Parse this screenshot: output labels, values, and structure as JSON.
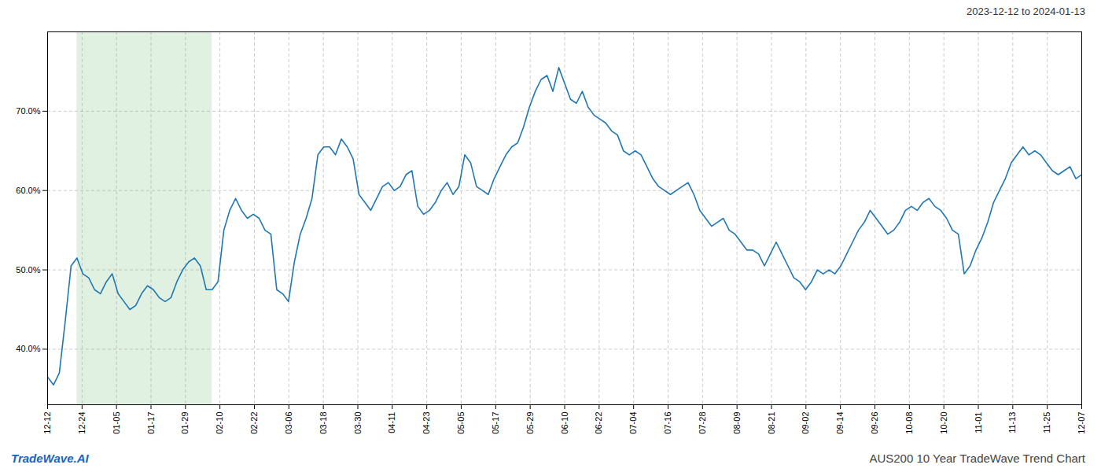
{
  "chart_data": {
    "type": "line",
    "title": "AUS200 10 Year TradeWave Trend Chart",
    "subtitle": "2023-12-12 to 2024-01-13",
    "annotations": [
      {
        "text": "TradeWave.AI",
        "color": "#1565c0"
      }
    ],
    "color": "#1f77b4",
    "highlight_range": [
      5,
      28
    ],
    "highlight_color": "#c8e6c9",
    "grid": true,
    "xlim": [
      0,
      176
    ],
    "xticks": [
      {
        "value": 0,
        "label": "12-12"
      },
      {
        "value": 5.866667,
        "label": "12-24"
      },
      {
        "value": 11.733333,
        "label": "01-05"
      },
      {
        "value": 17.6,
        "label": "01-17"
      },
      {
        "value": 23.466667,
        "label": "01-29"
      },
      {
        "value": 29.333333,
        "label": "02-10"
      },
      {
        "value": 35.2,
        "label": "02-22"
      },
      {
        "value": 41.066667,
        "label": "03-06"
      },
      {
        "value": 46.933333,
        "label": "03-18"
      },
      {
        "value": 52.8,
        "label": "03-30"
      },
      {
        "value": 58.666667,
        "label": "04-11"
      },
      {
        "value": 64.533333,
        "label": "04-23"
      },
      {
        "value": 70.4,
        "label": "05-05"
      },
      {
        "value": 76.266667,
        "label": "05-17"
      },
      {
        "value": 82.133333,
        "label": "05-29"
      },
      {
        "value": 88,
        "label": "06-10"
      },
      {
        "value": 93.866667,
        "label": "06-22"
      },
      {
        "value": 99.733333,
        "label": "07-04"
      },
      {
        "value": 105.6,
        "label": "07-16"
      },
      {
        "value": 111.466667,
        "label": "07-28"
      },
      {
        "value": 117.333333,
        "label": "08-09"
      },
      {
        "value": 123.2,
        "label": "08-21"
      },
      {
        "value": 129.066667,
        "label": "09-02"
      },
      {
        "value": 134.933333,
        "label": "09-14"
      },
      {
        "value": 140.8,
        "label": "09-26"
      },
      {
        "value": 146.666667,
        "label": "10-08"
      },
      {
        "value": 152.533333,
        "label": "10-20"
      },
      {
        "value": 158.4,
        "label": "11-01"
      },
      {
        "value": 164.266667,
        "label": "11-13"
      },
      {
        "value": 170.133333,
        "label": "11-25"
      },
      {
        "value": 176,
        "label": "12-07"
      }
    ],
    "ylim": [
      33,
      80
    ],
    "yticks": [
      {
        "value": 40.0,
        "label": "40.0%"
      },
      {
        "value": 50.0,
        "label": "50.0%"
      },
      {
        "value": 60.0,
        "label": "60.0%"
      },
      {
        "value": 70.0,
        "label": "70.0%"
      }
    ],
    "x": [
      0,
      1,
      2,
      3,
      4,
      5,
      6,
      7,
      8,
      9,
      10,
      11,
      12,
      13,
      14,
      15,
      16,
      17,
      18,
      19,
      20,
      21,
      22,
      23,
      24,
      25,
      26,
      27,
      28,
      29,
      30,
      31,
      32,
      33,
      34,
      35,
      36,
      37,
      38,
      39,
      40,
      41,
      42,
      43,
      44,
      45,
      46,
      47,
      48,
      49,
      50,
      51,
      52,
      53,
      54,
      55,
      56,
      57,
      58,
      59,
      60,
      61,
      62,
      63,
      64,
      65,
      66,
      67,
      68,
      69,
      70,
      71,
      72,
      73,
      74,
      75,
      76,
      77,
      78,
      79,
      80,
      81,
      82,
      83,
      84,
      85,
      86,
      87,
      88,
      89,
      90,
      91,
      92,
      93,
      94,
      95,
      96,
      97,
      98,
      99,
      100,
      101,
      102,
      103,
      104,
      105,
      106,
      107,
      108,
      109,
      110,
      111,
      112,
      113,
      114,
      115,
      116,
      117,
      118,
      119,
      120,
      121,
      122,
      123,
      124,
      125,
      126,
      127,
      128,
      129,
      130,
      131,
      132,
      133,
      134,
      135,
      136,
      137,
      138,
      139,
      140,
      141,
      142,
      143,
      144,
      145,
      146,
      147,
      148,
      149,
      150,
      151,
      152,
      153,
      154,
      155,
      156,
      157,
      158,
      159,
      160,
      161,
      162,
      163,
      164,
      165,
      166,
      167,
      168,
      169,
      170,
      171,
      172,
      173,
      174,
      175,
      176
    ],
    "values": [
      36.5,
      35.5,
      37.0,
      43.5,
      50.5,
      51.5,
      49.5,
      49.0,
      47.5,
      47.0,
      48.5,
      49.5,
      47.0,
      46.0,
      45.0,
      45.5,
      47.0,
      48.0,
      47.5,
      46.5,
      46.0,
      46.5,
      48.5,
      50.0,
      51.0,
      51.5,
      50.5,
      47.5,
      47.5,
      48.5,
      55.0,
      57.5,
      59.0,
      57.5,
      56.5,
      57.0,
      56.5,
      55.0,
      54.5,
      47.5,
      47.0,
      46.0,
      51.0,
      54.5,
      56.5,
      59.0,
      64.5,
      65.5,
      65.5,
      64.5,
      66.5,
      65.5,
      64.0,
      59.5,
      58.5,
      57.5,
      59.0,
      60.5,
      61.0,
      60.0,
      60.5,
      62.0,
      62.5,
      58.0,
      57.0,
      57.5,
      58.5,
      60.0,
      61.0,
      59.5,
      60.5,
      64.5,
      63.5,
      60.5,
      60.0,
      59.5,
      61.5,
      63.0,
      64.5,
      65.5,
      66.0,
      68.0,
      70.5,
      72.5,
      74.0,
      74.5,
      72.5,
      75.5,
      73.5,
      71.5,
      71.0,
      72.5,
      70.5,
      69.5,
      69.0,
      68.5,
      67.5,
      67.0,
      65.0,
      64.5,
      65.0,
      64.5,
      63.0,
      61.5,
      60.5,
      60.0,
      59.5,
      60.0,
      60.5,
      61.0,
      59.5,
      57.5,
      56.5,
      55.5,
      56.0,
      56.5,
      55.0,
      54.5,
      53.5,
      52.5,
      52.5,
      52.0,
      50.5,
      52.0,
      53.5,
      52.0,
      50.5,
      49.0,
      48.5,
      47.5,
      48.5,
      50.0,
      49.5,
      50.0,
      49.5,
      50.5,
      52.0,
      53.5,
      55.0,
      56.0,
      57.5,
      56.5,
      55.5,
      54.5,
      55.0,
      56.0,
      57.5,
      58.0,
      57.5,
      58.5,
      59.0,
      58.0,
      57.5,
      56.5,
      55.0,
      54.5,
      49.5,
      50.5,
      52.5,
      54.0,
      56.0,
      58.5,
      60.0,
      61.5,
      63.5,
      64.5,
      65.5,
      64.5,
      65.0,
      64.5,
      63.5,
      62.5,
      62.0,
      62.5,
      63.0,
      61.5,
      62.0
    ]
  }
}
